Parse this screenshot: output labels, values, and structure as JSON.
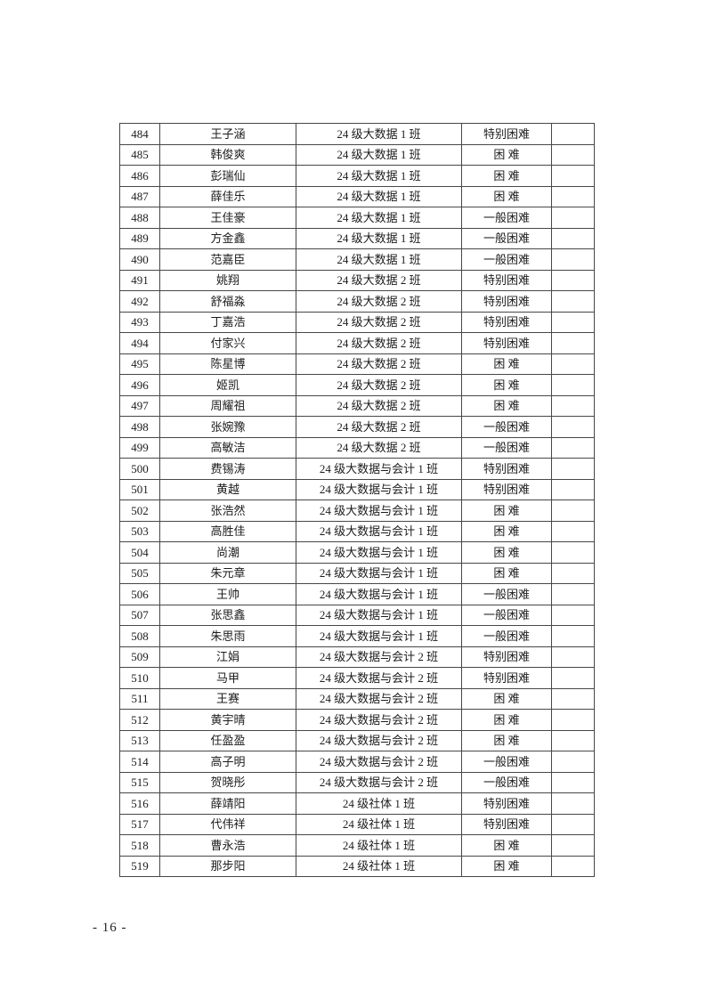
{
  "footer": {
    "page_number": "- 16 -"
  },
  "table": {
    "rows": [
      {
        "no": "484",
        "name": "王子涵",
        "class": "24 级大数据 1 班",
        "level": "特别困难",
        "remark": ""
      },
      {
        "no": "485",
        "name": "韩俊爽",
        "class": "24 级大数据 1 班",
        "level": "困 难",
        "remark": ""
      },
      {
        "no": "486",
        "name": "彭瑞仙",
        "class": "24 级大数据 1 班",
        "level": "困 难",
        "remark": ""
      },
      {
        "no": "487",
        "name": "薛佳乐",
        "class": "24 级大数据 1 班",
        "level": "困 难",
        "remark": ""
      },
      {
        "no": "488",
        "name": "王佳豪",
        "class": "24 级大数据 1 班",
        "level": "一般困难",
        "remark": ""
      },
      {
        "no": "489",
        "name": "方金鑫",
        "class": "24 级大数据 1 班",
        "level": "一般困难",
        "remark": ""
      },
      {
        "no": "490",
        "name": "范嘉臣",
        "class": "24 级大数据 1 班",
        "level": "一般困难",
        "remark": ""
      },
      {
        "no": "491",
        "name": "姚翔",
        "class": "24 级大数据 2 班",
        "level": "特别困难",
        "remark": ""
      },
      {
        "no": "492",
        "name": "舒福淼",
        "class": "24 级大数据 2 班",
        "level": "特别困难",
        "remark": ""
      },
      {
        "no": "493",
        "name": "丁嘉浩",
        "class": "24 级大数据 2 班",
        "level": "特别困难",
        "remark": ""
      },
      {
        "no": "494",
        "name": "付家兴",
        "class": "24 级大数据 2 班",
        "level": "特别困难",
        "remark": ""
      },
      {
        "no": "495",
        "name": "陈星博",
        "class": "24 级大数据 2 班",
        "level": "困 难",
        "remark": ""
      },
      {
        "no": "496",
        "name": "姬凯",
        "class": "24 级大数据 2 班",
        "level": "困 难",
        "remark": ""
      },
      {
        "no": "497",
        "name": "周耀祖",
        "class": "24 级大数据 2 班",
        "level": "困 难",
        "remark": ""
      },
      {
        "no": "498",
        "name": "张婉豫",
        "class": "24 级大数据 2 班",
        "level": "一般困难",
        "remark": ""
      },
      {
        "no": "499",
        "name": "高敏洁",
        "class": "24 级大数据 2 班",
        "level": "一般困难",
        "remark": ""
      },
      {
        "no": "500",
        "name": "费锡涛",
        "class": "24 级大数据与会计 1 班",
        "level": "特别困难",
        "remark": ""
      },
      {
        "no": "501",
        "name": "黄越",
        "class": "24 级大数据与会计 1 班",
        "level": "特别困难",
        "remark": ""
      },
      {
        "no": "502",
        "name": "张浩然",
        "class": "24 级大数据与会计 1 班",
        "level": "困 难",
        "remark": ""
      },
      {
        "no": "503",
        "name": "高胜佳",
        "class": "24 级大数据与会计 1 班",
        "level": "困 难",
        "remark": ""
      },
      {
        "no": "504",
        "name": "尚潮",
        "class": "24 级大数据与会计 1 班",
        "level": "困 难",
        "remark": ""
      },
      {
        "no": "505",
        "name": "朱元章",
        "class": "24 级大数据与会计 1 班",
        "level": "困 难",
        "remark": ""
      },
      {
        "no": "506",
        "name": "王帅",
        "class": "24 级大数据与会计 1 班",
        "level": "一般困难",
        "remark": ""
      },
      {
        "no": "507",
        "name": "张思鑫",
        "class": "24 级大数据与会计 1 班",
        "level": "一般困难",
        "remark": ""
      },
      {
        "no": "508",
        "name": "朱思雨",
        "class": "24 级大数据与会计 1 班",
        "level": "一般困难",
        "remark": ""
      },
      {
        "no": "509",
        "name": "江娟",
        "class": "24 级大数据与会计 2 班",
        "level": "特别困难",
        "remark": ""
      },
      {
        "no": "510",
        "name": "马甲",
        "class": "24 级大数据与会计 2 班",
        "level": "特别困难",
        "remark": ""
      },
      {
        "no": "511",
        "name": "王赛",
        "class": "24 级大数据与会计 2 班",
        "level": "困 难",
        "remark": ""
      },
      {
        "no": "512",
        "name": "黄宇晴",
        "class": "24 级大数据与会计 2 班",
        "level": "困 难",
        "remark": ""
      },
      {
        "no": "513",
        "name": "任盈盈",
        "class": "24 级大数据与会计 2 班",
        "level": "困 难",
        "remark": ""
      },
      {
        "no": "514",
        "name": "高子明",
        "class": "24 级大数据与会计 2 班",
        "level": "一般困难",
        "remark": ""
      },
      {
        "no": "515",
        "name": "贺晓彤",
        "class": "24 级大数据与会计 2 班",
        "level": "一般困难",
        "remark": ""
      },
      {
        "no": "516",
        "name": "薛靖阳",
        "class": "24 级社体 1 班",
        "level": "特别困难",
        "remark": ""
      },
      {
        "no": "517",
        "name": "代伟祥",
        "class": "24 级社体 1 班",
        "level": "特别困难",
        "remark": ""
      },
      {
        "no": "518",
        "name": "曹永浩",
        "class": "24 级社体 1 班",
        "level": "困 难",
        "remark": ""
      },
      {
        "no": "519",
        "name": "那步阳",
        "class": "24 级社体 1 班",
        "level": "困 难",
        "remark": ""
      }
    ]
  }
}
